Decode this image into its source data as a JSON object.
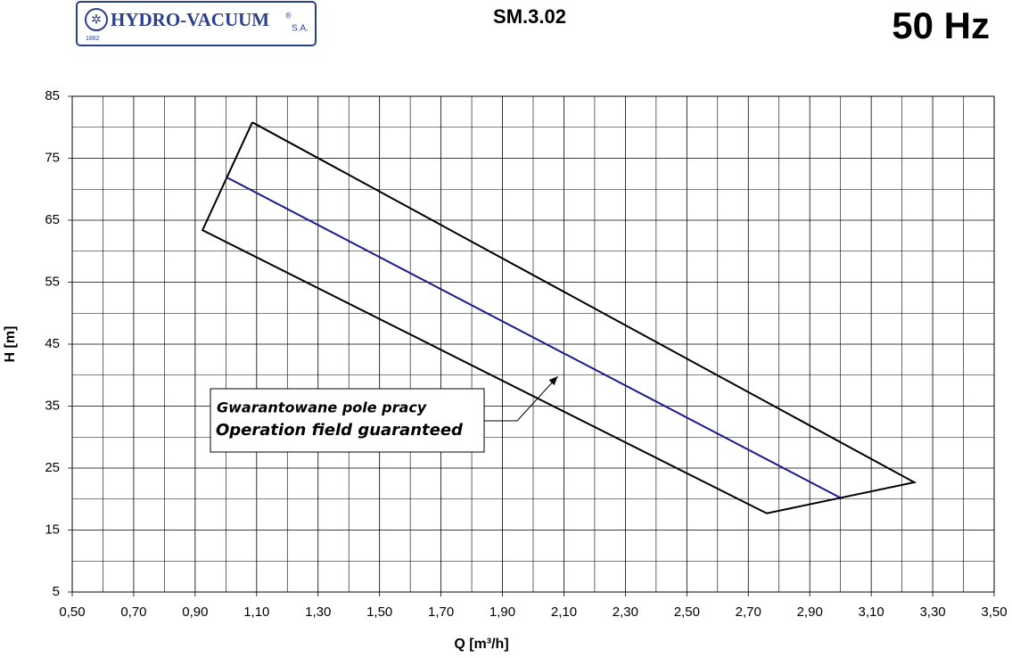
{
  "header": {
    "logo": "HYDRO-VACUUM",
    "logo_suffix": "S.A.",
    "logo_mark": "®",
    "logo_year": "1862",
    "frequency": "50 Hz"
  },
  "chart_data": {
    "type": "line",
    "title": "SM.3.02",
    "xlabel": "Q [m³/h]",
    "ylabel": "H [m]",
    "xlim": [
      0.5,
      3.5
    ],
    "ylim": [
      5,
      85
    ],
    "xticks": [
      {
        "value": 0.5,
        "label": "0,50"
      },
      {
        "value": 0.7,
        "label": "0,70"
      },
      {
        "value": 0.9,
        "label": "0,90"
      },
      {
        "value": 1.1,
        "label": "1,10"
      },
      {
        "value": 1.3,
        "label": "1,30"
      },
      {
        "value": 1.5,
        "label": "1,50"
      },
      {
        "value": 1.7,
        "label": "1,70"
      },
      {
        "value": 1.9,
        "label": "1,90"
      },
      {
        "value": 2.1,
        "label": "2,10"
      },
      {
        "value": 2.3,
        "label": "2,30"
      },
      {
        "value": 2.5,
        "label": "2,50"
      },
      {
        "value": 2.7,
        "label": "2,70"
      },
      {
        "value": 2.9,
        "label": "2,90"
      },
      {
        "value": 3.1,
        "label": "3,10"
      },
      {
        "value": 3.3,
        "label": "3,30"
      },
      {
        "value": 3.5,
        "label": "3,50"
      }
    ],
    "yticks": [
      5,
      15,
      25,
      35,
      45,
      55,
      65,
      75,
      85
    ],
    "xgrid": [
      0.6,
      0.8,
      1.0,
      1.2,
      1.4,
      1.6,
      1.8,
      2.0,
      2.2,
      2.4,
      2.6,
      2.8,
      3.0,
      3.2,
      3.4
    ],
    "ygrid": [
      10,
      20,
      30,
      40,
      50,
      60,
      70,
      80
    ],
    "grid": true,
    "series": [
      {
        "color": "#000000",
        "x": [
          1.086,
          0.924,
          2.76,
          3.24,
          1.086
        ],
        "values": [
          80.8,
          63.4,
          17.7,
          22.7,
          80.8
        ]
      },
      {
        "color": "#1a1a8c",
        "x": [
          1.0,
          3.0
        ],
        "values": [
          72,
          20.2
        ]
      }
    ],
    "annotation": {
      "lines": [
        "Gwarantowane pole pracy",
        "Operation field guaranteed"
      ],
      "x": 2.08,
      "y": 39.8
    }
  }
}
